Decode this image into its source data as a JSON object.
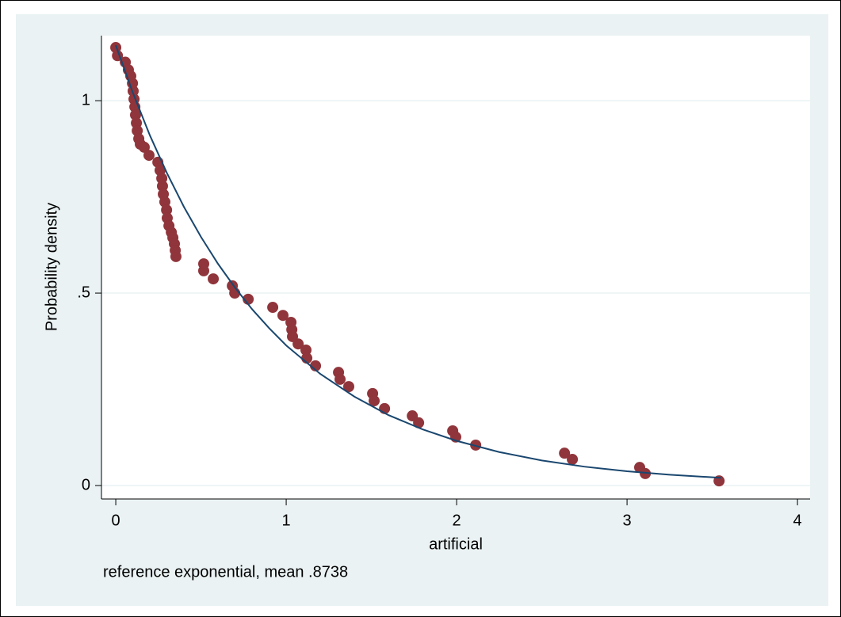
{
  "chart_data": {
    "type": "scatter",
    "x_label": "artificial",
    "y_label": "Probability density",
    "note": "reference exponential, mean .8738",
    "xlim": [
      -0.084,
      4.074
    ],
    "ylim": [
      -0.035,
      1.169
    ],
    "xticks": [
      0,
      1,
      2,
      3,
      4
    ],
    "yticks": [
      0,
      {
        "value": 0.5,
        "label": ".5"
      },
      1
    ],
    "ygrid": true,
    "series": [
      {
        "type": "scatter",
        "color": "#90353b",
        "x": [
          0,
          0.01,
          0.056,
          0.074,
          0.088,
          0.098,
          0.102,
          0.107,
          0.112,
          0.116,
          0.121,
          0.126,
          0.135,
          0.144,
          0.167,
          0.195,
          0.247,
          0.26,
          0.27,
          0.274,
          0.279,
          0.288,
          0.298,
          0.302,
          0.312,
          0.326,
          0.335,
          0.344,
          0.349,
          0.353,
          0.516,
          0.516,
          0.572,
          0.684,
          0.698,
          0.777,
          0.921,
          0.981,
          1.028,
          1.033,
          1.037,
          1.07,
          1.116,
          1.121,
          1.172,
          1.307,
          1.316,
          1.367,
          1.507,
          1.516,
          1.577,
          1.74,
          1.777,
          1.977,
          1.995,
          2.112,
          2.633,
          2.679,
          3.074,
          3.107,
          3.54
        ],
        "values": [
          1.138,
          1.117,
          1.1,
          1.08,
          1.064,
          1.045,
          1.025,
          1.004,
          0.984,
          0.963,
          0.942,
          0.922,
          0.901,
          0.887,
          0.879,
          0.858,
          0.84,
          0.819,
          0.798,
          0.778,
          0.757,
          0.737,
          0.716,
          0.695,
          0.675,
          0.658,
          0.644,
          0.628,
          0.611,
          0.595,
          0.576,
          0.558,
          0.537,
          0.519,
          0.5,
          0.484,
          0.463,
          0.442,
          0.424,
          0.405,
          0.387,
          0.368,
          0.352,
          0.331,
          0.311,
          0.294,
          0.276,
          0.257,
          0.239,
          0.22,
          0.2,
          0.181,
          0.163,
          0.142,
          0.126,
          0.105,
          0.084,
          0.068,
          0.047,
          0.031,
          0.012
        ]
      },
      {
        "type": "line",
        "color": "#1a476f",
        "x": [
          0,
          0.1,
          0.2,
          0.3,
          0.4,
          0.5,
          0.6,
          0.7,
          0.8,
          0.9,
          1.0,
          1.2,
          1.4,
          1.6,
          1.8,
          2.0,
          2.25,
          2.5,
          2.75,
          3.0,
          3.25,
          3.55
        ],
        "values": [
          1.144,
          1.021,
          0.91,
          0.812,
          0.724,
          0.646,
          0.576,
          0.514,
          0.458,
          0.409,
          0.364,
          0.29,
          0.231,
          0.183,
          0.146,
          0.116,
          0.087,
          0.065,
          0.049,
          0.037,
          0.028,
          0.02
        ]
      }
    ]
  }
}
